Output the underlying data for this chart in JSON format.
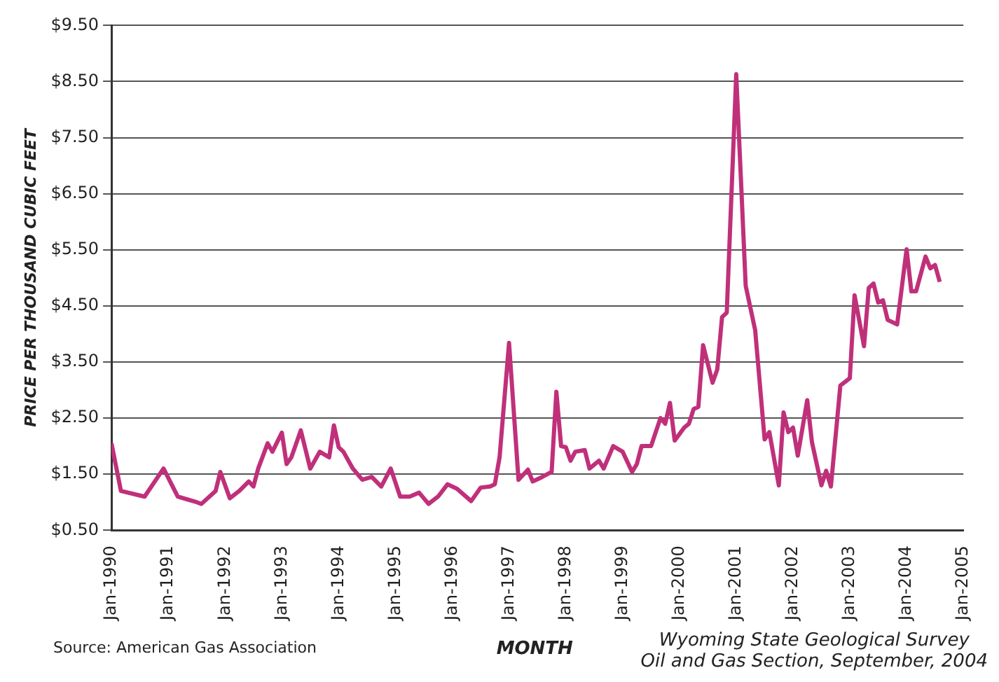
{
  "chart_data": {
    "type": "line",
    "ylabel": "PRICE PER THOUSAND CUBIC FEET",
    "xlabel": "MONTH",
    "annotations": [
      "Source: American Gas Association",
      "Wyoming State Geological Survey",
      "Oil and Gas Section, September, 2004"
    ],
    "xlim": [
      "1990-01",
      "2005-01"
    ],
    "xticks": [
      {
        "value": "1990-01",
        "label": "Jan-1990"
      },
      {
        "value": "1991-01",
        "label": "Jan-1991"
      },
      {
        "value": "1992-01",
        "label": "Jan-1992"
      },
      {
        "value": "1993-01",
        "label": "Jan-1993"
      },
      {
        "value": "1994-01",
        "label": "Jan-1994"
      },
      {
        "value": "1995-01",
        "label": "Jan-1995"
      },
      {
        "value": "1996-01",
        "label": "Jan-1996"
      },
      {
        "value": "1997-01",
        "label": "Jan-1997"
      },
      {
        "value": "1998-01",
        "label": "Jan-1998"
      },
      {
        "value": "1999-01",
        "label": "Jan-1999"
      },
      {
        "value": "2000-01",
        "label": "Jan-2000"
      },
      {
        "value": "2001-01",
        "label": "Jan-2001"
      },
      {
        "value": "2002-01",
        "label": "Jan-2002"
      },
      {
        "value": "2003-01",
        "label": "Jan-2003"
      },
      {
        "value": "2004-01",
        "label": "Jan-2004"
      },
      {
        "value": "2005-01",
        "label": "Jan-2005"
      }
    ],
    "ylim": [
      0.5,
      9.5
    ],
    "yticks": [
      {
        "value": 0.5,
        "label": "$0.50"
      },
      {
        "value": 1.5,
        "label": "$1.50"
      },
      {
        "value": 2.5,
        "label": "$2.50"
      },
      {
        "value": 3.5,
        "label": "$3.50"
      },
      {
        "value": 4.5,
        "label": "$4.50"
      },
      {
        "value": 5.5,
        "label": "$5.50"
      },
      {
        "value": 6.5,
        "label": "$6.50"
      },
      {
        "value": 7.5,
        "label": "$7.50"
      },
      {
        "value": 8.5,
        "label": "$8.50"
      },
      {
        "value": 9.5,
        "label": "$9.50"
      }
    ],
    "grid": "y",
    "legend": false,
    "marker": "none",
    "line_style": "solid",
    "series": [
      {
        "color": "#c0307a",
        "x": [
          "1990-01",
          "1990-03",
          "1990-08",
          "1990-12",
          "1991-03",
          "1991-07",
          "1991-08",
          "1991-11",
          "1991-12",
          "1992-02",
          "1992-04",
          "1992-06",
          "1992-07",
          "1992-08",
          "1992-10",
          "1992-11",
          "1993-01",
          "1993-02",
          "1993-03",
          "1993-05",
          "1993-07",
          "1993-09",
          "1993-11",
          "1993-12",
          "1994-01",
          "1994-02",
          "1994-04",
          "1994-06",
          "1994-08",
          "1994-10",
          "1994-12",
          "1995-02",
          "1995-04",
          "1995-06",
          "1995-08",
          "1995-10",
          "1995-12",
          "1996-02",
          "1996-05",
          "1996-07",
          "1996-09",
          "1996-10",
          "1996-11",
          "1997-01",
          "1997-03",
          "1997-05",
          "1997-06",
          "1997-08",
          "1997-10",
          "1997-11",
          "1997-12",
          "1998-01",
          "1998-02",
          "1998-03",
          "1998-05",
          "1998-06",
          "1998-08",
          "1998-09",
          "1998-11",
          "1999-01",
          "1999-03",
          "1999-04",
          "1999-05",
          "1999-07",
          "1999-09",
          "1999-10",
          "1999-11",
          "1999-12",
          "2000-02",
          "2000-03",
          "2000-04",
          "2000-05",
          "2000-06",
          "2000-08",
          "2000-09",
          "2000-10",
          "2000-11",
          "2001-01",
          "2001-03",
          "2001-05",
          "2001-07",
          "2001-08",
          "2001-10",
          "2001-11",
          "2001-12",
          "2002-01",
          "2002-02",
          "2002-04",
          "2002-05",
          "2002-07",
          "2002-08",
          "2002-09",
          "2002-11",
          "2003-01",
          "2003-02",
          "2003-04",
          "2003-05",
          "2003-06",
          "2003-07",
          "2003-08",
          "2003-09",
          "2003-11",
          "2004-01",
          "2004-02",
          "2004-03",
          "2004-05",
          "2004-06",
          "2004-07",
          "2004-08"
        ],
        "values": [
          2.05,
          1.2,
          1.1,
          1.6,
          1.1,
          1.0,
          0.97,
          1.2,
          1.54,
          1.07,
          1.2,
          1.37,
          1.28,
          1.6,
          2.05,
          1.9,
          2.24,
          1.68,
          1.8,
          2.28,
          1.6,
          1.9,
          1.8,
          2.37,
          1.98,
          1.9,
          1.6,
          1.4,
          1.45,
          1.28,
          1.6,
          1.1,
          1.1,
          1.17,
          0.97,
          1.1,
          1.32,
          1.24,
          1.02,
          1.26,
          1.28,
          1.32,
          1.8,
          3.84,
          1.4,
          1.58,
          1.37,
          1.45,
          1.54,
          2.97,
          2.0,
          1.98,
          1.74,
          1.9,
          1.93,
          1.6,
          1.74,
          1.6,
          2.0,
          1.9,
          1.54,
          1.68,
          2.0,
          2.0,
          2.5,
          2.4,
          2.77,
          2.1,
          2.33,
          2.4,
          2.66,
          2.7,
          3.8,
          3.13,
          3.37,
          4.3,
          4.38,
          8.63,
          4.86,
          4.07,
          2.12,
          2.25,
          1.3,
          2.6,
          2.25,
          2.33,
          1.83,
          2.82,
          2.07,
          1.3,
          1.56,
          1.28,
          3.08,
          3.21,
          4.69,
          3.78,
          4.82,
          4.9,
          4.56,
          4.6,
          4.25,
          4.17,
          5.51,
          4.76,
          4.76,
          5.38,
          5.17,
          5.23,
          4.93
        ]
      }
    ]
  }
}
